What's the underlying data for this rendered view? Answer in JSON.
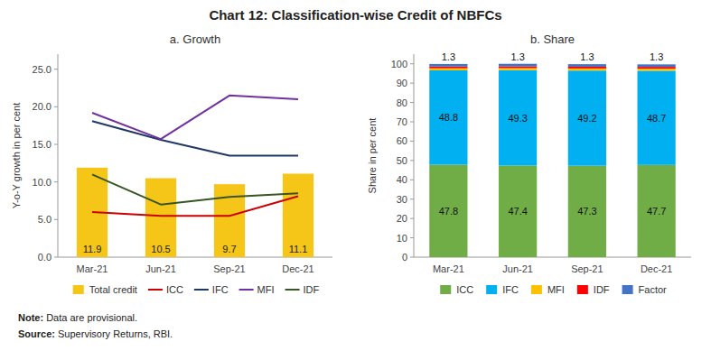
{
  "title": "Chart 12: Classification-wise Credit of NBFCs",
  "annotations": [
    "Note: Data are provisional.",
    "Source: Supervisory Returns, RBI."
  ],
  "chart_data": [
    {
      "type": "bar",
      "title": "a. Growth",
      "ylabel": "Y-o-Y growth in per cent",
      "categories": [
        "Mar-21",
        "Jun-21",
        "Sep-21",
        "Dec-21"
      ],
      "series": [
        {
          "name": "Total credit",
          "type": "bar",
          "color": "#F5C518",
          "data_labels": true,
          "values": [
            11.9,
            10.5,
            9.7,
            11.1
          ]
        },
        {
          "name": "ICC",
          "type": "line",
          "color": "#CC0000",
          "values": [
            6.0,
            5.5,
            5.5,
            8.1
          ]
        },
        {
          "name": "IFC",
          "type": "line",
          "color": "#1F3864",
          "values": [
            18.1,
            15.6,
            13.5,
            13.5
          ]
        },
        {
          "name": "MFI",
          "type": "line",
          "color": "#7030A0",
          "values": [
            19.2,
            15.7,
            21.5,
            21.0
          ]
        },
        {
          "name": "IDF",
          "type": "line",
          "color": "#375623",
          "values": [
            11.0,
            7.0,
            8.0,
            8.5
          ]
        }
      ],
      "ylim": [
        0,
        27
      ],
      "yticks": [
        {
          "value": 0.0,
          "label": "0.0"
        },
        {
          "value": 5.0,
          "label": "5.0"
        },
        {
          "value": 10.0,
          "label": "10.0"
        },
        {
          "value": 15.0,
          "label": "15.0"
        },
        {
          "value": 20.0,
          "label": "20.0"
        },
        {
          "value": 25.0,
          "label": "25.0"
        }
      ],
      "grid": false,
      "legend": "bottom"
    },
    {
      "type": "bar",
      "stacked": true,
      "title": "b. Share",
      "ylabel": "Share in per cent",
      "categories": [
        "Mar-21",
        "Jun-21",
        "Sep-21",
        "Dec-21"
      ],
      "series": [
        {
          "name": "ICC",
          "color": "#70AD47",
          "data_labels": true,
          "values": [
            47.8,
            47.4,
            47.3,
            47.7
          ]
        },
        {
          "name": "IFC",
          "color": "#00B0F0",
          "data_labels": true,
          "values": [
            48.8,
            49.3,
            49.2,
            48.7
          ]
        },
        {
          "name": "MFI",
          "color": "#FFC000",
          "data_labels": false,
          "values": [
            1.1,
            1.1,
            1.1,
            1.1
          ]
        },
        {
          "name": "IDF",
          "color": "#FF0000",
          "data_labels": false,
          "values": [
            0.9,
            0.9,
            0.9,
            0.9
          ]
        },
        {
          "name": "Factor",
          "color": "#4472C4",
          "data_labels": true,
          "values": [
            1.3,
            1.3,
            1.3,
            1.3
          ]
        }
      ],
      "ylim": [
        0,
        105
      ],
      "yticks": [
        0,
        10,
        20,
        30,
        40,
        50,
        60,
        70,
        80,
        90,
        100
      ],
      "grid": false,
      "legend": "bottom"
    }
  ]
}
